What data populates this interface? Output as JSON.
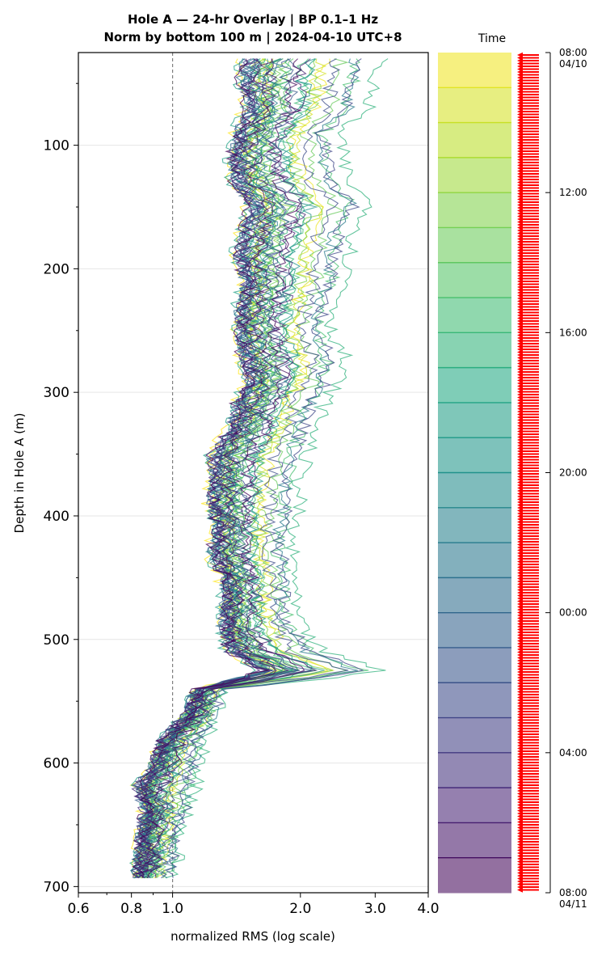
{
  "chart_data": {
    "type": "line",
    "title": "Hole A — 24-hr Overlay  |  BP 0.1–1 Hz",
    "subtitle": "Norm by bottom 100 m  |  2024-04-10 UTC+8",
    "xlabel": "normalized RMS  (log scale)",
    "ylabel": "Depth in Hole A (m)",
    "x_scale": "log",
    "xlim": [
      0.6,
      4.0
    ],
    "ylim": [
      705,
      25
    ],
    "xticks": [
      "0.6",
      "0.8",
      "1.0",
      "2.0",
      "3.0",
      "4.0"
    ],
    "xtick_values": [
      0.6,
      0.8,
      1.0,
      2.0,
      3.0,
      4.0
    ],
    "yticks": [
      "100",
      "200",
      "300",
      "400",
      "500",
      "600",
      "700"
    ],
    "ytick_values": [
      100,
      200,
      300,
      400,
      500,
      600,
      700
    ],
    "reference_line_x": 1.0,
    "grid": "horizontal",
    "colorbar": {
      "label": "Time",
      "colormap": "viridis",
      "ticks": [
        {
          "time": "08:00",
          "date": "04/10"
        },
        {
          "time": "12:00",
          "date": ""
        },
        {
          "time": "16:00",
          "date": ""
        },
        {
          "time": "20:00",
          "date": ""
        },
        {
          "time": "00:00",
          "date": ""
        },
        {
          "time": "04:00",
          "date": ""
        },
        {
          "time": "08:00",
          "date": "04/11"
        }
      ],
      "intervals": 24,
      "marker_color": "#ff0000"
    },
    "profile_depths": [
      30,
      50,
      70,
      90,
      110,
      130,
      150,
      170,
      190,
      210,
      230,
      250,
      270,
      290,
      310,
      330,
      350,
      370,
      390,
      410,
      430,
      450,
      470,
      490,
      510,
      525,
      540,
      560,
      580,
      600,
      620,
      640,
      660,
      680,
      695
    ],
    "profile_band": {
      "low_rms": [
        1.45,
        1.42,
        1.48,
        1.4,
        1.36,
        1.38,
        1.5,
        1.45,
        1.4,
        1.46,
        1.42,
        1.4,
        1.44,
        1.5,
        1.4,
        1.36,
        1.22,
        1.24,
        1.22,
        1.26,
        1.22,
        1.3,
        1.32,
        1.3,
        1.34,
        1.6,
        1.14,
        1.08,
        0.95,
        0.9,
        0.82,
        0.86,
        0.84,
        0.83,
        0.82
      ],
      "high_rms": [
        3.4,
        3.2,
        3.1,
        2.6,
        2.7,
        2.8,
        3.2,
        2.9,
        2.8,
        2.75,
        2.6,
        2.5,
        2.7,
        2.6,
        2.4,
        2.3,
        2.2,
        2.1,
        2.1,
        2.0,
        2.0,
        2.05,
        2.0,
        2.1,
        2.4,
        3.3,
        1.35,
        1.3,
        1.22,
        1.2,
        1.18,
        1.12,
        1.06,
        1.05,
        1.0
      ]
    }
  }
}
